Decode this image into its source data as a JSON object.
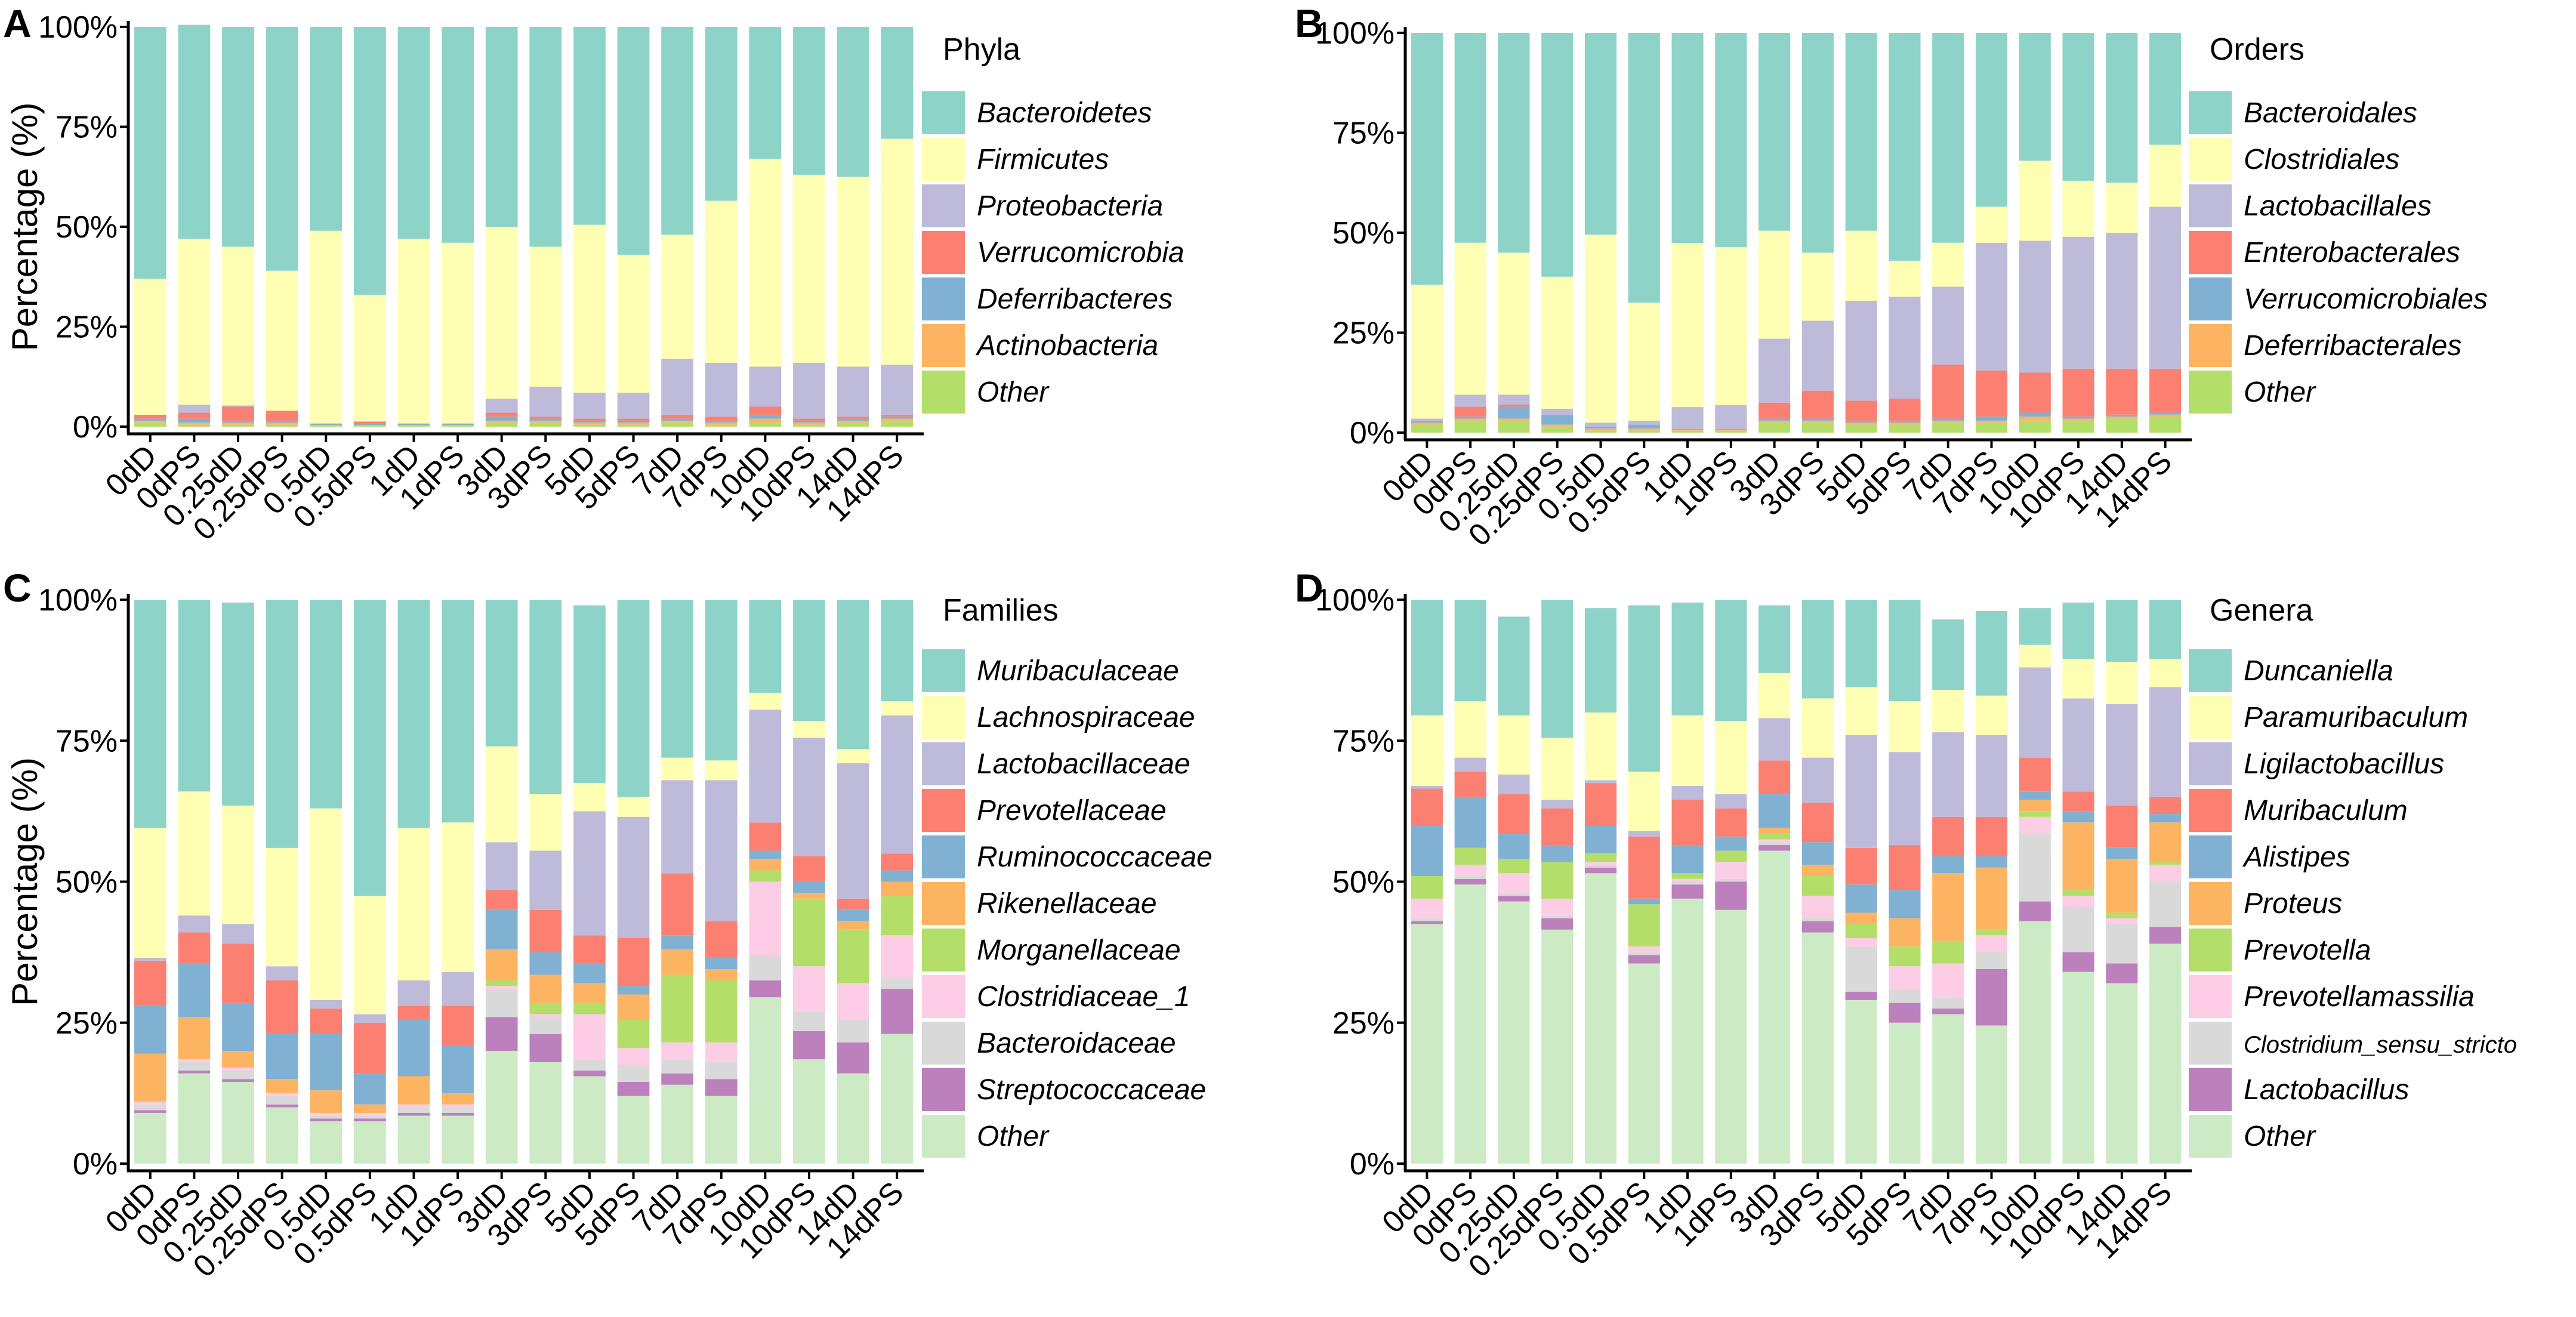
{
  "chart_data": [
    {
      "type": "bar",
      "stacked": true,
      "panel": "A",
      "title": "",
      "ylabel": "Percentage (%)",
      "ylim": [
        0,
        100
      ],
      "yticks": [
        "0%",
        "25%",
        "50%",
        "75%",
        "100%"
      ],
      "categories": [
        "0dD",
        "0dPS",
        "0.25dD",
        "0.25dPS",
        "0.5dD",
        "0.5dPS",
        "1dD",
        "1dPS",
        "3dD",
        "3dPS",
        "5dD",
        "5dPS",
        "7dD",
        "7dPS",
        "10dD",
        "10dPS",
        "14dD",
        "14dPS"
      ],
      "legend_title": "Phyla",
      "series": [
        {
          "name": "Other",
          "color": "#b3de69",
          "values": [
            1,
            0.5,
            0.5,
            0.5,
            0.2,
            0.2,
            0.2,
            0.2,
            1,
            1,
            0.5,
            0.5,
            1,
            0.5,
            1,
            0.5,
            1,
            1.5
          ]
        },
        {
          "name": "Actinobacteria",
          "color": "#fdb462",
          "values": [
            0.5,
            0.5,
            0.5,
            0.5,
            0.2,
            0.2,
            0.2,
            0.2,
            0.5,
            0.5,
            0.5,
            0.5,
            0.5,
            0.5,
            1,
            0.5,
            0.5,
            0.5
          ]
        },
        {
          "name": "Deferribacteres",
          "color": "#80b1d3",
          "values": [
            0.5,
            1,
            0.5,
            0.5,
            0.2,
            0.2,
            0.2,
            0.2,
            1,
            0.5,
            0.5,
            0.5,
            0.5,
            0.5,
            1,
            0.5,
            0.5,
            0.5
          ]
        },
        {
          "name": "Verrucomicrobia",
          "color": "#fb8072",
          "values": [
            1,
            1.5,
            3.5,
            2.5,
            0.2,
            0.7,
            0.2,
            0.2,
            1,
            0.5,
            0.5,
            0.5,
            1,
            1,
            2,
            0.5,
            0.5,
            0.5
          ]
        },
        {
          "name": "Proteobacteria",
          "color": "#bebada",
          "values": [
            0,
            2,
            0.3,
            0,
            0,
            0,
            0,
            0,
            3.5,
            7.5,
            6.5,
            6.5,
            14,
            13.5,
            10,
            14,
            12.5,
            12.5
          ]
        },
        {
          "name": "Firmicutes",
          "color": "#ffffb3",
          "values": [
            34,
            41.5,
            39.7,
            35,
            48.2,
            31.7,
            46.2,
            45.2,
            43,
            35,
            42,
            34.5,
            31,
            40.5,
            52,
            47,
            47.5,
            56.5
          ]
        },
        {
          "name": "Bacteroidetes",
          "color": "#8dd3c7",
          "values": [
            63,
            53.5,
            55,
            61,
            51,
            67,
            53,
            54,
            50,
            55,
            49.5,
            57,
            52,
            43.5,
            33,
            37,
            37.5,
            28
          ]
        }
      ]
    },
    {
      "type": "bar",
      "stacked": true,
      "panel": "B",
      "title": "",
      "ylabel": "",
      "ylim": [
        0,
        100
      ],
      "yticks": [
        "0%",
        "25%",
        "50%",
        "75%",
        "100%"
      ],
      "categories": [
        "0dD",
        "0dPS",
        "0.25dD",
        "0.25dPS",
        "0.5dD",
        "0.5dPS",
        "1dD",
        "1dPS",
        "3dD",
        "3dPS",
        "5dD",
        "5dPS",
        "7dD",
        "7dPS",
        "10dD",
        "10dPS",
        "14dD",
        "14dPS"
      ],
      "legend_title": "Orders",
      "series": [
        {
          "name": "Other",
          "color": "#b3de69",
          "values": [
            2,
            3,
            3,
            1.5,
            0.5,
            0.5,
            0.5,
            0.5,
            2.5,
            2.5,
            2,
            2,
            2.5,
            2.5,
            3,
            3,
            3.5,
            4
          ]
        },
        {
          "name": "Deferribacterales",
          "color": "#fdb462",
          "values": [
            0.5,
            0.5,
            0.5,
            0.5,
            0.5,
            0.5,
            0.2,
            0.2,
            0.5,
            0.5,
            0.5,
            0.5,
            0.5,
            0.5,
            1,
            0.5,
            0.5,
            0.5
          ]
        },
        {
          "name": "Verrucomicrobiales",
          "color": "#80b1d3",
          "values": [
            0.5,
            0.5,
            3,
            2.5,
            0.5,
            1,
            0.2,
            0.2,
            0.5,
            0.5,
            0.5,
            0.5,
            0.5,
            1,
            1,
            0.5,
            0.5,
            0.5
          ]
        },
        {
          "name": "Enterobacterales",
          "color": "#fb8072",
          "values": [
            0,
            2.5,
            0.5,
            0,
            0,
            0,
            0,
            0,
            4,
            7,
            5,
            5.5,
            13.5,
            11.5,
            10,
            12,
            11.5,
            11
          ]
        },
        {
          "name": "Lactobacillales",
          "color": "#bebada",
          "values": [
            0.5,
            3,
            2.5,
            1.5,
            1,
            1,
            5.5,
            6,
            16,
            17.5,
            25,
            25.5,
            19.5,
            32,
            33,
            33,
            34,
            40.5
          ]
        },
        {
          "name": "Clostridiales",
          "color": "#ffffb3",
          "values": [
            33.5,
            38,
            35.5,
            33,
            47,
            29.5,
            41,
            39.5,
            27,
            17,
            17.5,
            9,
            11,
            9,
            20,
            14,
            12.5,
            15.5
          ]
        },
        {
          "name": "Bacteroidales",
          "color": "#8dd3c7",
          "values": [
            63,
            52.5,
            55,
            61,
            50.5,
            67.5,
            52.6,
            53.6,
            49.5,
            55,
            49.5,
            57,
            52.5,
            43.5,
            32,
            37,
            37.5,
            28
          ]
        }
      ]
    },
    {
      "type": "bar",
      "stacked": true,
      "panel": "C",
      "title": "",
      "ylabel": "Percentage (%)",
      "ylim": [
        0,
        100
      ],
      "yticks": [
        "0%",
        "25%",
        "50%",
        "75%",
        "100%"
      ],
      "categories": [
        "0dD",
        "0dPS",
        "0.25dD",
        "0.25dPS",
        "0.5dD",
        "0.5dPS",
        "1dD",
        "1dPS",
        "3dD",
        "3dPS",
        "5dD",
        "5dPS",
        "7dD",
        "7dPS",
        "10dD",
        "10dPS",
        "14dD",
        "14dPS"
      ],
      "legend_title": "Families",
      "series": [
        {
          "name": "Other",
          "color": "#ccebc5",
          "values": [
            9,
            16,
            14.5,
            10,
            7.5,
            7.5,
            8.5,
            8.5,
            20,
            18,
            15.5,
            12,
            14,
            12,
            29.5,
            18.5,
            16,
            23
          ]
        },
        {
          "name": "Streptococcaceae",
          "color": "#bc80bd",
          "values": [
            0.5,
            0.5,
            0.5,
            0.5,
            0.5,
            0.5,
            0.5,
            0.5,
            6,
            5,
            1,
            2.5,
            2,
            3,
            3,
            5,
            5.5,
            8
          ]
        },
        {
          "name": "Bacteroidaceae",
          "color": "#d9d9d9",
          "values": [
            1,
            1.5,
            1.5,
            1.5,
            0.5,
            0.5,
            1,
            1,
            5,
            3,
            2,
            3,
            2.5,
            3,
            4.5,
            3.5,
            4,
            2
          ]
        },
        {
          "name": "Clostridiaceae_1",
          "color": "#fccde5",
          "values": [
            0.5,
            0.5,
            0.5,
            0.5,
            0.5,
            0.5,
            0.5,
            0.5,
            0.5,
            0.5,
            8,
            3,
            3,
            3.5,
            13,
            8,
            6.5,
            7.5
          ]
        },
        {
          "name": "Morganellaceae",
          "color": "#b3de69",
          "values": [
            0,
            0,
            0,
            0,
            0,
            0,
            0,
            0,
            1,
            2,
            2,
            5,
            12,
            11,
            2,
            12,
            9.5,
            7
          ]
        },
        {
          "name": "Rikenellaceae",
          "color": "#fdb462",
          "values": [
            8.5,
            7.5,
            3,
            2.5,
            4,
            1.5,
            5,
            2,
            5.5,
            5,
            3.5,
            4.5,
            4.5,
            2,
            2,
            1,
            1.5,
            2.5
          ]
        },
        {
          "name": "Ruminococcaceae",
          "color": "#80b1d3",
          "values": [
            8.5,
            9.5,
            8.5,
            8,
            10,
            5.5,
            10,
            8.5,
            7,
            4,
            3.5,
            1.5,
            2.5,
            2,
            1.5,
            2,
            2,
            2
          ]
        },
        {
          "name": "Prevotellaceae",
          "color": "#fb8072",
          "values": [
            8,
            5.5,
            10.5,
            9.5,
            4.5,
            9,
            2.5,
            7,
            3.5,
            7.5,
            5,
            8.5,
            11,
            6.5,
            5,
            4.5,
            2,
            3
          ]
        },
        {
          "name": "Lactobacillaceae",
          "color": "#bebada",
          "values": [
            0.5,
            3,
            3.5,
            2.5,
            1.5,
            1.5,
            4.5,
            6,
            8.5,
            10.5,
            22,
            21.5,
            16.5,
            25,
            20,
            21,
            24,
            24.5
          ]
        },
        {
          "name": "Lachnospiraceae",
          "color": "#ffffb3",
          "values": [
            23,
            22,
            21,
            21,
            34,
            21,
            27,
            26.5,
            17,
            10,
            5,
            3.5,
            4,
            3.5,
            3,
            3,
            2.5,
            2.5
          ]
        },
        {
          "name": "Muribaculaceae",
          "color": "#8dd3c7",
          "values": [
            40.5,
            34,
            36,
            44,
            37,
            52.5,
            40.5,
            39.5,
            26,
            34.5,
            31.5,
            35,
            28,
            28.5,
            16.5,
            21.5,
            26.5,
            18
          ]
        }
      ]
    },
    {
      "type": "bar",
      "stacked": true,
      "panel": "D",
      "title": "",
      "ylabel": "",
      "ylim": [
        0,
        100
      ],
      "yticks": [
        "0%",
        "25%",
        "50%",
        "75%",
        "100%"
      ],
      "categories": [
        "0dD",
        "0dPS",
        "0.25dD",
        "0.25dPS",
        "0.5dD",
        "0.5dPS",
        "1dD",
        "1dPS",
        "3dD",
        "3dPS",
        "5dD",
        "5dPS",
        "7dD",
        "7dPS",
        "10dD",
        "10dPS",
        "14dD",
        "14dPS"
      ],
      "legend_title": "Genera",
      "series": [
        {
          "name": "Other",
          "color": "#ccebc5",
          "values": [
            42.5,
            49.5,
            46.5,
            41.5,
            51.5,
            35.5,
            47,
            45,
            55.5,
            41,
            29,
            25,
            26.5,
            24.5,
            43,
            34,
            32,
            39
          ]
        },
        {
          "name": "Lactobacillus",
          "color": "#bc80bd",
          "values": [
            0.5,
            1,
            1,
            2,
            1,
            1.5,
            2.5,
            5,
            1,
            2,
            1.5,
            3.5,
            1,
            10,
            3.5,
            3.5,
            3.5,
            3
          ]
        },
        {
          "name": "Clostridium_sensu_stricto",
          "color": "#d9d9d9",
          "values": [
            0.5,
            0.5,
            0.5,
            0.5,
            0.5,
            0.5,
            0.5,
            0.5,
            0.5,
            0.5,
            8,
            2.5,
            2,
            3,
            12,
            8,
            7,
            8
          ]
        },
        {
          "name": "Prevotellamassilia",
          "color": "#fccde5",
          "values": [
            3.5,
            2,
            3.5,
            3,
            0.5,
            1,
            0.5,
            3,
            0.5,
            4,
            1.5,
            4,
            6,
            3,
            3,
            2,
            1,
            3
          ]
        },
        {
          "name": "Prevotella",
          "color": "#b3de69",
          "values": [
            4,
            3,
            2.5,
            6.5,
            1.5,
            7.5,
            1,
            2,
            1,
            3.5,
            2.5,
            3.5,
            4,
            1,
            1,
            1,
            1,
            0.5
          ]
        },
        {
          "name": "Proteus",
          "color": "#fdb462",
          "values": [
            0,
            0,
            0,
            0,
            0,
            0,
            0,
            0,
            1,
            2,
            2,
            5,
            12,
            11,
            2,
            12,
            9.5,
            7
          ]
        },
        {
          "name": "Alistipes",
          "color": "#80b1d3",
          "values": [
            9,
            9,
            4.5,
            3,
            5,
            1,
            5,
            2.5,
            6,
            4,
            5,
            5,
            3,
            2,
            1.5,
            2,
            2,
            1.5
          ]
        },
        {
          "name": "Muribaculum",
          "color": "#fb8072",
          "values": [
            6.5,
            4.5,
            7,
            6.5,
            7.5,
            11,
            8,
            5,
            6,
            7,
            6.5,
            8,
            7,
            7,
            6,
            3.5,
            7.5,
            3
          ]
        },
        {
          "name": "Ligilactobacillus",
          "color": "#bebada",
          "values": [
            0.5,
            2.5,
            3.5,
            1.5,
            0.5,
            1,
            2.5,
            2.5,
            7.5,
            8,
            20,
            16.5,
            15,
            14.5,
            16,
            16.5,
            18,
            19.5
          ]
        },
        {
          "name": "Paramuribaculum",
          "color": "#ffffb3",
          "values": [
            12.5,
            10,
            10.5,
            11,
            12,
            10.5,
            12.5,
            13,
            8,
            10.5,
            8.5,
            9,
            7.5,
            7,
            4,
            7,
            7.5,
            5
          ]
        },
        {
          "name": "Duncaniella",
          "color": "#8dd3c7",
          "values": [
            20.5,
            18,
            17.5,
            24.5,
            18.5,
            29.5,
            20,
            21.5,
            12,
            17.5,
            15.5,
            18,
            12.5,
            15,
            6.5,
            10,
            11,
            10.5
          ]
        }
      ]
    }
  ]
}
